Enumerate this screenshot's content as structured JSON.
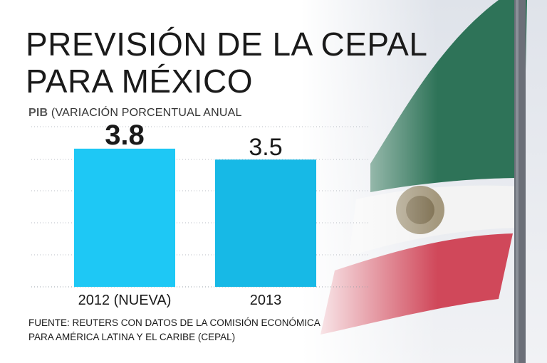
{
  "title_line1": "PREVISIÓN DE LA CEPAL",
  "title_line2": "PARA MÉXICO",
  "subtitle_bold": "PIB",
  "subtitle_rest": " (VARIACIÓN PORCENTUAL ANUAL",
  "source_line1": "FUENTE: REUTERS CON DATOS DE LA COMISIÓN ECONÓMICA",
  "source_line2": "PARA AMÉRICA LATINA Y EL CARIBE (CEPAL)",
  "colors": {
    "bar_1": "#1ec8f5",
    "bar_2": "#17b9e6",
    "flag_green": "#2e7358",
    "flag_red": "#d0485a"
  },
  "chart_data": {
    "type": "bar",
    "title": "PREVISIÓN DE LA CEPAL PARA MÉXICO",
    "ylabel": "PIB (VARIACIÓN PORCENTUAL ANUAL",
    "categories": [
      "2012 (NUEVA)",
      "2013"
    ],
    "values": [
      3.8,
      3.5
    ],
    "value_labels": [
      "3.8",
      "3.5"
    ],
    "highlight": [
      true,
      false
    ],
    "ylim": [
      0,
      4.6
    ],
    "grid": true
  }
}
